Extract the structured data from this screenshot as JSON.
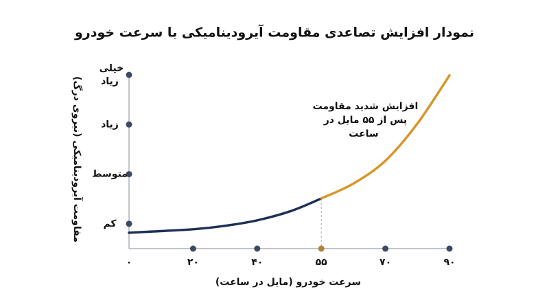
{
  "chart_data": {
    "type": "line",
    "title": "نمودار افزایش تصاعدی مقاومت آیرودینامیکی با سرعت خودرو",
    "x_label": "سرعت خودرو (مایل در ساعت)",
    "y_label": "مقاومت آیرودینامیکی (نیروی درگ)",
    "annotation": "افزایش شدید مقاومت پس از ۵۵ مایل در ساعت",
    "x": [
      0,
      20,
      30,
      40,
      48,
      55,
      62.5,
      70,
      80,
      90
    ],
    "series": [
      {
        "color": "#1f3057",
        "values": [
          -0.18,
          -0.11,
          -0.04,
          0.07,
          0.26,
          0.51,
          null,
          null,
          null,
          null
        ]
      },
      {
        "color": "#d9962a",
        "values": [
          null,
          null,
          null,
          null,
          null,
          0.51,
          0.81,
          1.27,
          2.02,
          2.99
        ]
      }
    ],
    "xlim": [
      0,
      90
    ],
    "xticks": [
      {
        "value": 0,
        "label": "۰"
      },
      {
        "value": 20,
        "label": "۲۰"
      },
      {
        "value": 40,
        "label": "۴۰"
      },
      {
        "value": 55,
        "label": "۵۵"
      },
      {
        "value": 70,
        "label": "۷۰"
      },
      {
        "value": 90,
        "label": "۹۰"
      }
    ],
    "ylim": [
      -0.5,
      3
    ],
    "yticks": [
      {
        "value": 0,
        "label": "کم"
      },
      {
        "value": 1,
        "label": "متوسط"
      },
      {
        "value": 2,
        "label": "زیاد"
      },
      {
        "value": 3,
        "label": "خیلی زیاد"
      }
    ],
    "highlight_x": 55,
    "highlight_color": "#b5813a",
    "dot_color": "#3d4a63"
  }
}
